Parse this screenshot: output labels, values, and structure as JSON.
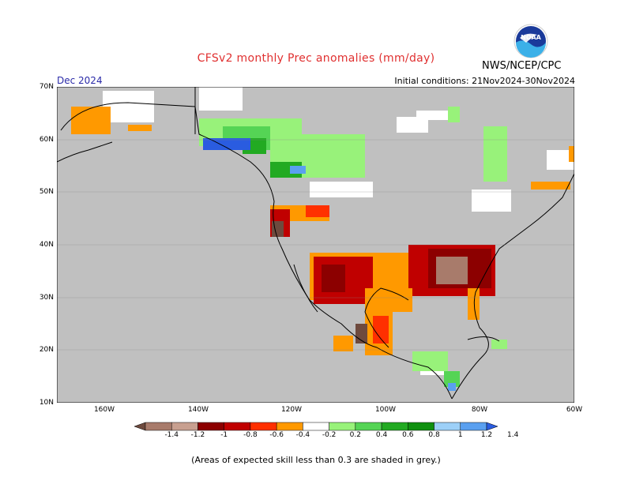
{
  "header": {
    "title": "CFSv2 monthly Prec anomalies (mm/day)",
    "org": "NWS/NCEP/CPC",
    "month": "Dec 2024",
    "initial_conditions": "Initial conditions: 21Nov2024-30Nov2024"
  },
  "map": {
    "lat_labels": [
      "70N",
      "60N",
      "50N",
      "40N",
      "30N",
      "20N",
      "10N"
    ],
    "lon_labels": [
      "160W",
      "140W",
      "120W",
      "100W",
      "80W",
      "60W"
    ],
    "ocean_color": "#c0c0c0",
    "coast_color": "#000000"
  },
  "colorbar": {
    "labels": [
      "-1.4",
      "-1.2",
      "-1",
      "-0.8",
      "-0.6",
      "-0.4",
      "-0.2",
      "0.2",
      "0.4",
      "0.6",
      "0.8",
      "1",
      "1.2",
      "1.4"
    ],
    "colors": [
      "#6e4a3e",
      "#a87b6b",
      "#c8a090",
      "#8c0000",
      "#c00000",
      "#ff3000",
      "#ff9900",
      "#ffffff",
      "#98f27a",
      "#55d455",
      "#22aa22",
      "#109010",
      "#9dd0f8",
      "#5aa0f0",
      "#2a5ce0"
    ]
  },
  "footer": {
    "note": "(Areas of expected skill less than 0.3 are shaded in grey.)"
  }
}
